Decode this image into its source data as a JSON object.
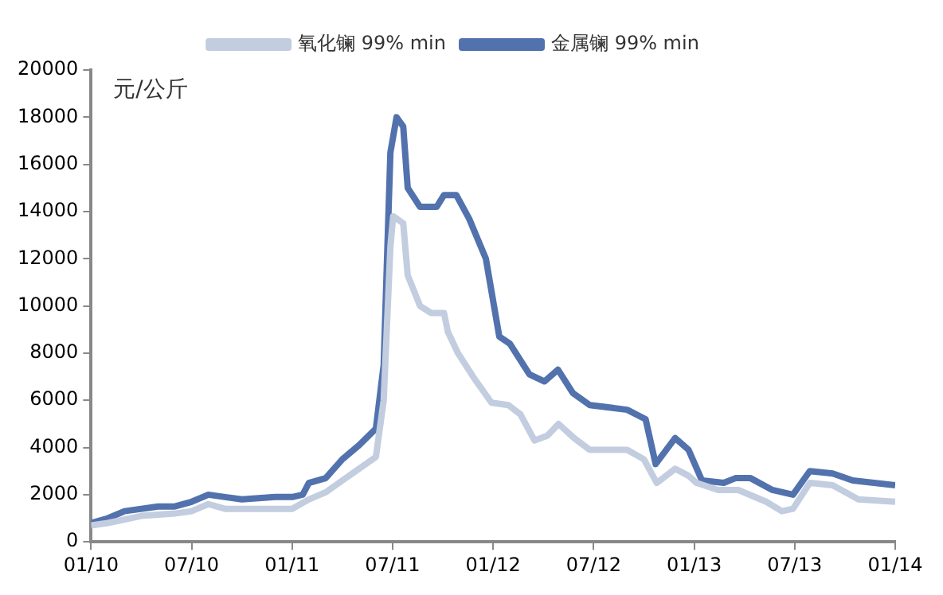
{
  "chart_data": {
    "type": "line",
    "ylabel": "元/公斤",
    "legend": "top",
    "marker": "none",
    "line_style": "solid",
    "grid": false,
    "ylim": [
      0,
      20000
    ],
    "yticks": [
      0,
      2000,
      4000,
      6000,
      8000,
      10000,
      12000,
      14000,
      16000,
      18000,
      20000
    ],
    "xlim": [
      "2010-01",
      "2014-01"
    ],
    "xticks": [
      {
        "value": "2010-01",
        "label": "01/10"
      },
      {
        "value": "2010-07",
        "label": "07/10"
      },
      {
        "value": "2011-01",
        "label": "01/11"
      },
      {
        "value": "2011-07",
        "label": "07/11"
      },
      {
        "value": "2012-01",
        "label": "01/12"
      },
      {
        "value": "2012-07",
        "label": "07/12"
      },
      {
        "value": "2013-01",
        "label": "01/13"
      },
      {
        "value": "2013-07",
        "label": "07/13"
      },
      {
        "value": "2014-01",
        "label": "01/14"
      }
    ],
    "series": [
      {
        "name": "氧化镧 99% min",
        "color": "#c3cde0",
        "x": [
          "2010-01",
          "2010-02",
          "2010-04",
          "2010-06",
          "2010-07",
          "2010-08",
          "2010-09",
          "2010-11",
          "2011-01",
          "2011-02",
          "2011-03",
          "2011-04",
          "2011-05",
          "2011-06",
          "2011-06-15",
          "2011-06-27",
          "2011-07-02",
          "2011-07-20",
          "2011-07-28",
          "2011-08-20",
          "2011-09-10",
          "2011-10-03",
          "2011-10-10",
          "2011-10-28",
          "2011-11-28",
          "2011-12-28",
          "2012-01-28",
          "2012-02-20",
          "2012-03-15",
          "2012-04-08",
          "2012-04-28",
          "2012-05-26",
          "2012-06-24",
          "2012-09-01",
          "2012-10-01",
          "2012-10-24",
          "2012-11-27",
          "2012-12-21",
          "2013-01-05",
          "2013-02-14",
          "2013-03-20",
          "2013-05-10",
          "2013-06-08",
          "2013-06-28",
          "2013-07-28",
          "2013-09-09",
          "2013-10-25",
          "2014-01"
        ],
        "values": [
          700,
          800,
          1100,
          1200,
          1300,
          1600,
          1400,
          1400,
          1400,
          1800,
          2100,
          2600,
          3100,
          3600,
          6000,
          12500,
          13800,
          13500,
          11300,
          10000,
          9700,
          9700,
          8900,
          8000,
          6900,
          5900,
          5800,
          5400,
          4300,
          4500,
          5000,
          4400,
          3900,
          3900,
          3500,
          2500,
          3100,
          2800,
          2500,
          2200,
          2200,
          1700,
          1300,
          1400,
          2500,
          2400,
          1800,
          1700
        ]
      },
      {
        "name": "金属镧 99% min",
        "color": "#5272ae",
        "x": [
          "2010-01",
          "2010-02",
          "2010-03",
          "2010-05",
          "2010-06",
          "2010-07",
          "2010-08",
          "2010-09",
          "2010-10",
          "2010-12",
          "2011-01",
          "2011-01-20",
          "2011-02",
          "2011-03",
          "2011-04",
          "2011-05",
          "2011-06",
          "2011-06-15",
          "2011-06-27",
          "2011-07-08",
          "2011-07-20",
          "2011-07-28",
          "2011-08-20",
          "2011-09-20",
          "2011-10-03",
          "2011-10-25",
          "2011-11-18",
          "2011-12-18",
          "2012-01-12",
          "2012-02-01",
          "2012-03-06",
          "2012-04-03",
          "2012-04-27",
          "2012-05-24",
          "2012-06-24",
          "2012-09-01",
          "2012-10-04",
          "2012-10-22",
          "2012-11-27",
          "2012-12-21",
          "2013-01-15",
          "2013-02-24",
          "2013-03-15",
          "2013-04-12",
          "2013-05-21",
          "2013-06-28",
          "2013-07-28",
          "2013-09-09",
          "2013-10-15",
          "2014-01"
        ],
        "values": [
          800,
          1000,
          1300,
          1500,
          1500,
          1700,
          2000,
          1900,
          1800,
          1900,
          1900,
          2000,
          2500,
          2700,
          3500,
          4100,
          4800,
          7500,
          16500,
          18000,
          17600,
          15000,
          14200,
          14200,
          14700,
          14700,
          13700,
          12000,
          8700,
          8400,
          7100,
          6800,
          7300,
          6300,
          5800,
          5600,
          5200,
          3300,
          4400,
          3900,
          2600,
          2500,
          2700,
          2700,
          2200,
          2000,
          3000,
          2900,
          2600,
          2400
        ]
      }
    ]
  }
}
